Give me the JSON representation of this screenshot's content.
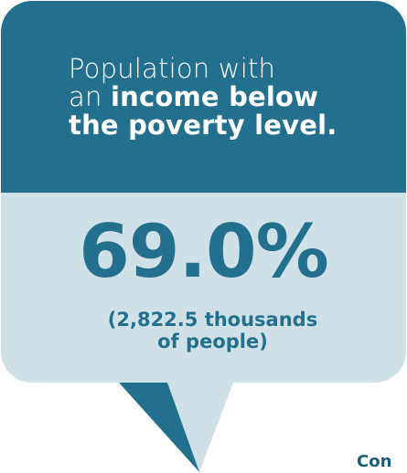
{
  "card": {
    "heading_line1": "Population with",
    "heading_line2_prefix": "an ",
    "heading_line2_bold": "income below",
    "heading_line3_bold": "the poverty level.",
    "value": "69.0%",
    "sub_line1": "(2,822.5 thousands",
    "sub_line2": "of people)"
  },
  "corner_text": "Con",
  "colors": {
    "dark": "#23708e",
    "light": "#cfe0e7",
    "text_light": "#ffffff"
  }
}
